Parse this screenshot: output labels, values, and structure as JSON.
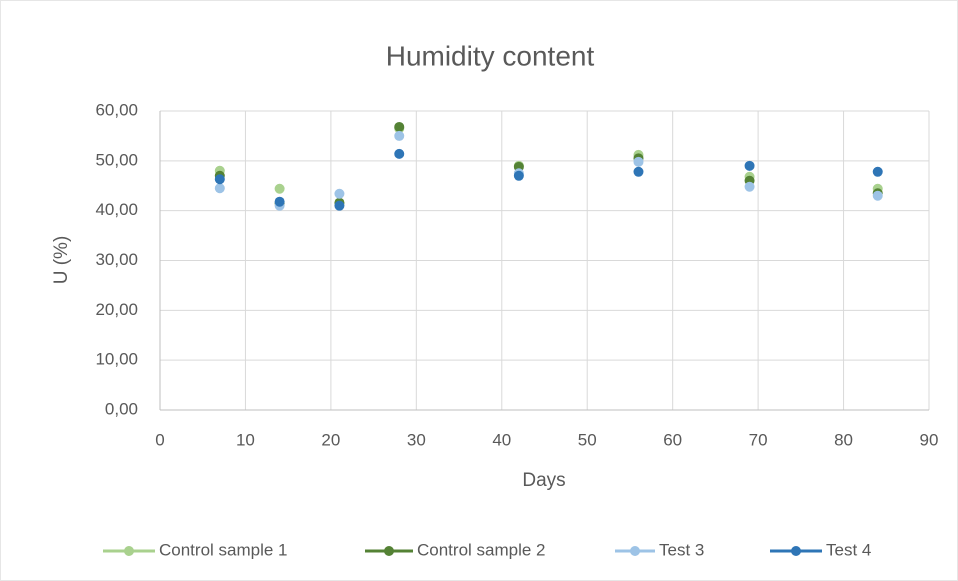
{
  "chart_data": {
    "type": "scatter",
    "title": "Humidity content",
    "x_label": "Days",
    "y_label": "U (%)",
    "x": [
      7,
      14,
      21,
      28,
      42,
      56,
      69,
      84
    ],
    "series": [
      {
        "name": "Control sample 1",
        "color": "#a9d18e",
        "values": [
          48.0,
          44.4,
          41.5,
          56.5,
          49.0,
          51.2,
          46.8,
          44.4
        ]
      },
      {
        "name": "Control sample 2",
        "color": "#548235",
        "values": [
          47.0,
          41.5,
          41.6,
          56.8,
          48.8,
          50.5,
          46.0,
          43.5
        ]
      },
      {
        "name": "Test 3",
        "color": "#9dc3e6",
        "values": [
          44.5,
          41.0,
          43.4,
          55.0,
          47.5,
          49.8,
          44.8,
          43.0
        ]
      },
      {
        "name": "Test 4",
        "color": "#2e75b6",
        "values": [
          46.3,
          41.8,
          41.0,
          51.4,
          47.0,
          47.8,
          49.0,
          47.8
        ]
      }
    ],
    "xlim": [
      0,
      90
    ],
    "xticks": [
      0,
      10,
      20,
      30,
      40,
      50,
      60,
      70,
      80,
      90
    ],
    "ylim": [
      0,
      60
    ],
    "yticks": [
      {
        "value": 0,
        "label": "0,00"
      },
      {
        "value": 10,
        "label": "10,00"
      },
      {
        "value": 20,
        "label": "20,00"
      },
      {
        "value": 30,
        "label": "30,00"
      },
      {
        "value": 40,
        "label": "40,00"
      },
      {
        "value": 50,
        "label": "50,00"
      },
      {
        "value": 60,
        "label": "60,00"
      }
    ],
    "grid": true,
    "legend": "bottom"
  }
}
